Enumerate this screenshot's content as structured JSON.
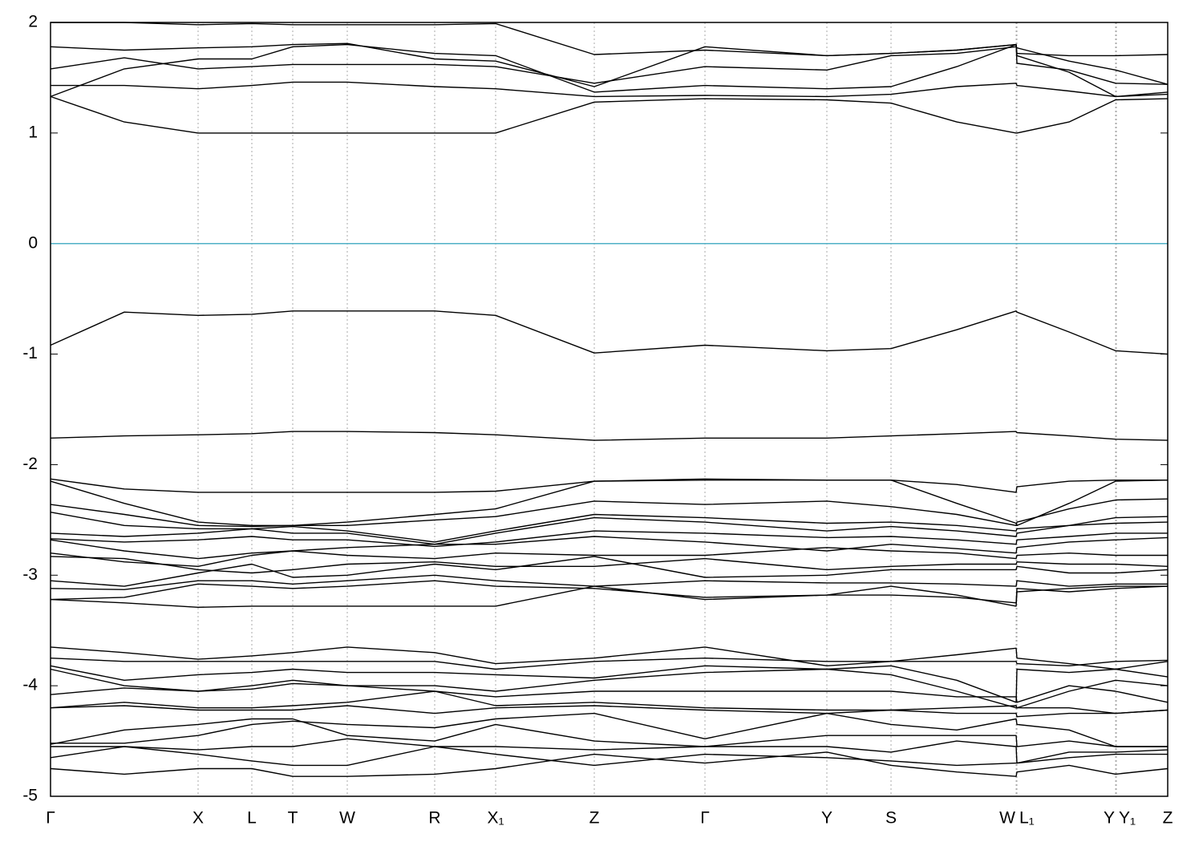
{
  "chart_data": {
    "type": "line",
    "x": [
      0,
      0.92,
      1.84,
      2.51,
      3.02,
      3.7,
      4.79,
      5.55,
      6.78,
      8.16,
      9.68,
      10.48,
      11.3,
      12.04,
      12.05,
      12.7,
      13.28,
      13.93
    ],
    "xlim": [
      0,
      13.93
    ],
    "xticks": [
      {
        "value": 0,
        "label": "Γ"
      },
      {
        "value": 1.84,
        "label": "X"
      },
      {
        "value": 2.51,
        "label": "L"
      },
      {
        "value": 3.02,
        "label": "T"
      },
      {
        "value": 3.7,
        "label": "W"
      },
      {
        "value": 4.79,
        "label": "R"
      },
      {
        "value": 5.55,
        "label": "X₁"
      },
      {
        "value": 6.78,
        "label": "Z"
      },
      {
        "value": 8.16,
        "label": "Γ"
      },
      {
        "value": 9.68,
        "label": "Y"
      },
      {
        "value": 10.48,
        "label": "S"
      },
      {
        "value": 12.04,
        "label": "W"
      },
      {
        "value": 12.05,
        "label": "L₁"
      },
      {
        "value": 13.28,
        "label": "Y"
      },
      {
        "value": 13.29,
        "label": "Y₁"
      },
      {
        "value": 13.93,
        "label": "Z"
      }
    ],
    "ylim": [
      -5,
      2
    ],
    "yticks": [
      2,
      1,
      0,
      -1,
      -2,
      -3,
      -4,
      -5
    ],
    "grid": true,
    "line_color": "#000000",
    "hline": {
      "value": 0,
      "color": "#4fb0c6"
    },
    "series": [
      {
        "values": [
          1.33,
          1.1,
          1.0,
          1.0,
          1.0,
          1.0,
          1.0,
          1.0,
          1.28,
          1.31,
          1.3,
          1.27,
          1.1,
          1.0,
          1.0,
          1.1,
          1.3,
          1.31
        ]
      },
      {
        "values": [
          1.43,
          1.43,
          1.4,
          1.43,
          1.46,
          1.46,
          1.42,
          1.4,
          1.33,
          1.34,
          1.33,
          1.35,
          1.42,
          1.45,
          1.43,
          1.38,
          1.33,
          1.37
        ]
      },
      {
        "values": [
          1.33,
          1.58,
          1.67,
          1.67,
          1.78,
          1.8,
          1.72,
          1.7,
          1.37,
          1.43,
          1.4,
          1.42,
          1.6,
          1.8,
          1.7,
          1.55,
          1.33,
          1.35
        ]
      },
      {
        "values": [
          1.58,
          1.68,
          1.58,
          1.6,
          1.62,
          1.62,
          1.62,
          1.6,
          1.45,
          1.6,
          1.57,
          1.7,
          1.72,
          1.78,
          1.77,
          1.65,
          1.57,
          1.44
        ]
      },
      {
        "values": [
          1.78,
          1.75,
          1.77,
          1.78,
          1.8,
          1.81,
          1.67,
          1.65,
          1.42,
          1.78,
          1.7,
          1.72,
          1.75,
          1.8,
          1.63,
          1.57,
          1.45,
          1.44
        ]
      },
      {
        "values": [
          2.0,
          2.0,
          1.98,
          1.99,
          1.98,
          1.98,
          1.98,
          1.99,
          1.71,
          1.75,
          1.7,
          1.72,
          1.75,
          1.8,
          1.72,
          1.7,
          1.7,
          1.71
        ]
      },
      {
        "values": [
          -0.92,
          -0.62,
          -0.65,
          -0.64,
          -0.61,
          -0.61,
          -0.61,
          -0.65,
          -0.99,
          -0.92,
          -0.97,
          -0.95,
          -0.78,
          -0.61,
          -0.62,
          -0.8,
          -0.97,
          -1.0
        ]
      },
      {
        "values": [
          -1.76,
          -1.74,
          -1.73,
          -1.72,
          -1.7,
          -1.7,
          -1.71,
          -1.73,
          -1.78,
          -1.76,
          -1.76,
          -1.74,
          -1.72,
          -1.7,
          -1.71,
          -1.74,
          -1.77,
          -1.78
        ]
      },
      {
        "values": [
          -2.13,
          -2.22,
          -2.25,
          -2.25,
          -2.25,
          -2.25,
          -2.25,
          -2.24,
          -2.15,
          -2.13,
          -2.14,
          -2.14,
          -2.18,
          -2.25,
          -2.2,
          -2.15,
          -2.14,
          -2.14
        ]
      },
      {
        "values": [
          -2.15,
          -2.35,
          -2.52,
          -2.55,
          -2.55,
          -2.52,
          -2.45,
          -2.4,
          -2.15,
          -2.14,
          -2.14,
          -2.14,
          -2.35,
          -2.53,
          -2.55,
          -2.35,
          -2.15,
          -2.14
        ]
      },
      {
        "values": [
          -2.36,
          -2.45,
          -2.55,
          -2.56,
          -2.55,
          -2.55,
          -2.5,
          -2.47,
          -2.33,
          -2.36,
          -2.33,
          -2.38,
          -2.45,
          -2.55,
          -2.52,
          -2.4,
          -2.32,
          -2.31
        ]
      },
      {
        "values": [
          -2.43,
          -2.55,
          -2.58,
          -2.58,
          -2.56,
          -2.6,
          -2.7,
          -2.6,
          -2.45,
          -2.48,
          -2.53,
          -2.52,
          -2.55,
          -2.6,
          -2.58,
          -2.55,
          -2.48,
          -2.47
        ]
      },
      {
        "values": [
          -2.62,
          -2.65,
          -2.62,
          -2.58,
          -2.62,
          -2.62,
          -2.72,
          -2.62,
          -2.48,
          -2.52,
          -2.6,
          -2.56,
          -2.6,
          -2.65,
          -2.62,
          -2.55,
          -2.53,
          -2.52
        ]
      },
      {
        "values": [
          -2.67,
          -2.7,
          -2.68,
          -2.65,
          -2.68,
          -2.68,
          -2.74,
          -2.7,
          -2.6,
          -2.62,
          -2.66,
          -2.65,
          -2.68,
          -2.72,
          -2.68,
          -2.65,
          -2.62,
          -2.62
        ]
      },
      {
        "values": [
          -2.68,
          -2.78,
          -2.85,
          -2.8,
          -2.78,
          -2.75,
          -2.72,
          -2.72,
          -2.65,
          -2.7,
          -2.78,
          -2.72,
          -2.76,
          -2.8,
          -2.75,
          -2.7,
          -2.68,
          -2.66
        ]
      },
      {
        "values": [
          -2.8,
          -2.88,
          -2.92,
          -2.82,
          -2.78,
          -2.82,
          -2.85,
          -2.8,
          -2.82,
          -2.82,
          -2.75,
          -2.78,
          -2.8,
          -2.85,
          -2.82,
          -2.8,
          -2.82,
          -2.82
        ]
      },
      {
        "values": [
          -2.83,
          -2.85,
          -2.95,
          -2.98,
          -2.95,
          -2.9,
          -2.88,
          -2.92,
          -2.92,
          -2.85,
          -2.95,
          -2.92,
          -2.9,
          -2.9,
          -2.88,
          -2.9,
          -2.9,
          -2.92
        ]
      },
      {
        "values": [
          -3.05,
          -3.1,
          -2.98,
          -2.9,
          -3.02,
          -3.0,
          -2.9,
          -2.95,
          -2.83,
          -3.02,
          -3.0,
          -2.95,
          -2.95,
          -2.95,
          -2.92,
          -2.98,
          -2.98,
          -2.95
        ]
      },
      {
        "values": [
          -3.12,
          -3.13,
          -3.05,
          -3.05,
          -3.08,
          -3.05,
          -3.0,
          -3.05,
          -3.1,
          -3.05,
          -3.07,
          -3.07,
          -3.08,
          -3.1,
          -3.05,
          -3.1,
          -3.08,
          -3.08
        ]
      },
      {
        "values": [
          -3.22,
          -3.2,
          -3.08,
          -3.1,
          -3.12,
          -3.1,
          -3.05,
          -3.1,
          -3.12,
          -3.2,
          -3.18,
          -3.1,
          -3.18,
          -3.28,
          -3.15,
          -3.12,
          -3.1,
          -3.1
        ]
      },
      {
        "values": [
          -3.22,
          -3.25,
          -3.29,
          -3.28,
          -3.28,
          -3.28,
          -3.28,
          -3.28,
          -3.1,
          -3.22,
          -3.18,
          -3.18,
          -3.2,
          -3.25,
          -3.12,
          -3.15,
          -3.12,
          -3.1
        ]
      },
      {
        "values": [
          -3.65,
          -3.7,
          -3.76,
          -3.73,
          -3.7,
          -3.65,
          -3.7,
          -3.8,
          -3.75,
          -3.65,
          -3.82,
          -3.78,
          -3.72,
          -3.66,
          -3.75,
          -3.8,
          -3.85,
          -3.78
        ]
      },
      {
        "values": [
          -3.75,
          -3.78,
          -3.78,
          -3.78,
          -3.78,
          -3.78,
          -3.78,
          -3.85,
          -3.78,
          -3.75,
          -3.78,
          -3.78,
          -3.78,
          -3.78,
          -3.8,
          -3.82,
          -3.78,
          -3.77
        ]
      },
      {
        "values": [
          -3.82,
          -3.95,
          -3.9,
          -3.88,
          -3.85,
          -3.88,
          -3.88,
          -3.9,
          -3.93,
          -3.82,
          -3.85,
          -3.82,
          -3.95,
          -4.15,
          -3.85,
          -3.88,
          -3.85,
          -3.92
        ]
      },
      {
        "values": [
          -3.85,
          -4.0,
          -4.05,
          -4.0,
          -3.95,
          -4.0,
          -4.0,
          -4.05,
          -3.95,
          -3.88,
          -3.85,
          -3.9,
          -4.05,
          -4.2,
          -4.2,
          -4.05,
          -3.95,
          -4.0
        ]
      },
      {
        "values": [
          -4.08,
          -4.02,
          -4.05,
          -4.03,
          -3.98,
          -4.0,
          -4.05,
          -4.1,
          -4.05,
          -4.05,
          -4.05,
          -4.05,
          -4.1,
          -4.1,
          -4.15,
          -4.0,
          -4.05,
          -4.15
        ]
      },
      {
        "values": [
          -4.2,
          -4.15,
          -4.2,
          -4.2,
          -4.18,
          -4.15,
          -4.05,
          -4.18,
          -4.15,
          -4.2,
          -4.22,
          -4.22,
          -4.2,
          -4.18,
          -4.2,
          -4.2,
          -4.25,
          -4.22
        ]
      },
      {
        "values": [
          -4.2,
          -4.18,
          -4.22,
          -4.22,
          -4.22,
          -4.18,
          -4.25,
          -4.2,
          -4.18,
          -4.22,
          -4.25,
          -4.22,
          -4.25,
          -4.25,
          -4.28,
          -4.25,
          -4.25,
          -4.22
        ]
      },
      {
        "values": [
          -4.52,
          -4.52,
          -4.45,
          -4.35,
          -4.32,
          -4.35,
          -4.38,
          -4.3,
          -4.25,
          -4.48,
          -4.25,
          -4.35,
          -4.4,
          -4.3,
          -4.35,
          -4.4,
          -4.55,
          -4.55
        ]
      },
      {
        "values": [
          -4.53,
          -4.4,
          -4.35,
          -4.3,
          -4.3,
          -4.45,
          -4.5,
          -4.35,
          -4.5,
          -4.55,
          -4.45,
          -4.45,
          -4.45,
          -4.45,
          -4.55,
          -4.5,
          -4.55,
          -4.55
        ]
      },
      {
        "values": [
          -4.55,
          -4.55,
          -4.58,
          -4.55,
          -4.55,
          -4.48,
          -4.55,
          -4.55,
          -4.58,
          -4.55,
          -4.55,
          -4.6,
          -4.5,
          -4.55,
          -4.7,
          -4.6,
          -4.6,
          -4.58
        ]
      },
      {
        "values": [
          -4.65,
          -4.55,
          -4.62,
          -4.68,
          -4.72,
          -4.72,
          -4.55,
          -4.62,
          -4.72,
          -4.62,
          -4.65,
          -4.68,
          -4.72,
          -4.7,
          -4.7,
          -4.65,
          -4.62,
          -4.62
        ]
      },
      {
        "values": [
          -4.75,
          -4.8,
          -4.75,
          -4.75,
          -4.82,
          -4.82,
          -4.8,
          -4.75,
          -4.62,
          -4.7,
          -4.6,
          -4.72,
          -4.78,
          -4.82,
          -4.78,
          -4.72,
          -4.8,
          -4.75
        ]
      }
    ]
  }
}
